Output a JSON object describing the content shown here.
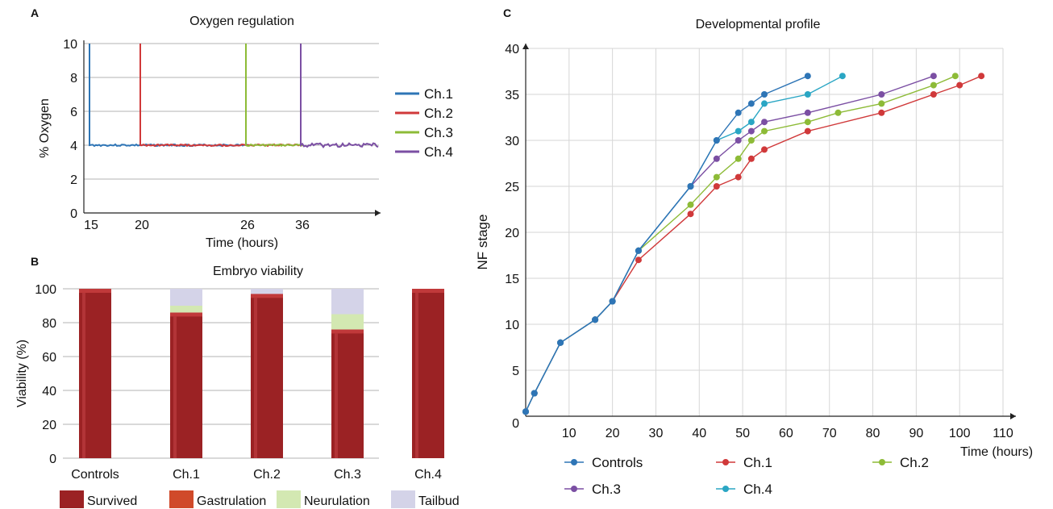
{
  "panels": {
    "a": "A",
    "b": "B",
    "c": "C"
  },
  "colors": {
    "ch1": "#2e75b6",
    "ch2": "#d0393a",
    "ch3": "#8dbb37",
    "ch4": "#7b4fa3",
    "controls": "#2e75b6",
    "dev_ch1": "#d0393a",
    "dev_ch2": "#8dbb37",
    "dev_ch3": "#7b4fa3",
    "dev_ch4": "#2aa6c4",
    "survived": "#9b2224",
    "gastrulation": "#d04a2a",
    "neurulation": "#d3e8b2",
    "tailbud": "#d4d3e8",
    "grid": "#b3b3b3"
  },
  "chart_data": [
    {
      "id": "oxygen",
      "type": "line",
      "title": "Oxygen regulation",
      "xlabel": "Time (hours)",
      "ylabel": "% Oxygen",
      "ylim": [
        0,
        10
      ],
      "yticks": [
        "0",
        "2",
        "4",
        "6",
        "8",
        "10"
      ],
      "xticks": [
        "15",
        "20",
        "26",
        "36"
      ],
      "grid": true,
      "legend_position": "right",
      "series": [
        {
          "name": "Ch.1",
          "spike_at": "15",
          "end_at": "26",
          "level": 4.0
        },
        {
          "name": "Ch.2",
          "spike_at": "20",
          "end_at": "36",
          "level": 4.0
        },
        {
          "name": "Ch.3",
          "spike_at": "26",
          "end_at": "36",
          "level": 4.0
        },
        {
          "name": "Ch.4",
          "spike_at": "36",
          "end_at": "end",
          "level": 4.0
        }
      ]
    },
    {
      "id": "viability",
      "type": "bar",
      "stacked": true,
      "title": "Embryo viability",
      "ylabel": "Viability (%)",
      "ylim": [
        0,
        100
      ],
      "yticks": [
        "0",
        "20",
        "40",
        "60",
        "80",
        "100"
      ],
      "grid": true,
      "categories": [
        "Controls",
        "Ch.1",
        "Ch.2",
        "Ch.3",
        "Ch.4"
      ],
      "series": [
        {
          "name": "Survived",
          "values": [
            100,
            86,
            97,
            76,
            100
          ]
        },
        {
          "name": "Gastrulation",
          "values": [
            0,
            0,
            0,
            0,
            0
          ]
        },
        {
          "name": "Neurulation",
          "values": [
            0,
            4,
            0,
            9,
            0
          ]
        },
        {
          "name": "Tailbud",
          "values": [
            0,
            10,
            3,
            15,
            0
          ]
        }
      ],
      "legend_position": "bottom"
    },
    {
      "id": "development",
      "type": "line",
      "title": "Developmental profile",
      "xlabel": "Time (hours)",
      "ylabel": "NF stage",
      "xlim": [
        0,
        110
      ],
      "ylim": [
        0,
        40
      ],
      "xticks": [
        "10",
        "20",
        "30",
        "40",
        "50",
        "60",
        "70",
        "80",
        "90",
        "100",
        "110"
      ],
      "yticks": [
        "5",
        "10",
        "15",
        "20",
        "25",
        "30",
        "35",
        "40"
      ],
      "origin_label": "0",
      "grid": true,
      "legend_position": "bottom",
      "series": [
        {
          "name": "Controls",
          "x": [
            0,
            2,
            8,
            16,
            20,
            26,
            38,
            44,
            49,
            52,
            55,
            65
          ],
          "y": [
            0.5,
            2.5,
            8,
            10.5,
            12.5,
            18,
            25,
            30,
            33,
            34,
            35,
            37
          ]
        },
        {
          "name": "Ch.1",
          "x": [
            0,
            2,
            8,
            16,
            20,
            26,
            38,
            44,
            49,
            52,
            55,
            65,
            82,
            94,
            100,
            105
          ],
          "y": [
            0.5,
            2.5,
            8,
            10.5,
            12.5,
            17,
            22,
            25,
            26,
            28,
            29,
            31,
            33,
            35,
            36,
            37
          ]
        },
        {
          "name": "Ch.2",
          "x": [
            0,
            2,
            8,
            16,
            20,
            26,
            38,
            44,
            49,
            52,
            55,
            65,
            72,
            82,
            94,
            99
          ],
          "y": [
            0.5,
            2.5,
            8,
            10.5,
            12.5,
            18,
            23,
            26,
            28,
            30,
            31,
            32,
            33,
            34,
            36,
            37
          ]
        },
        {
          "name": "Ch.3",
          "x": [
            0,
            2,
            8,
            16,
            20,
            26,
            38,
            44,
            49,
            52,
            55,
            65,
            82,
            94
          ],
          "y": [
            0.5,
            2.5,
            8,
            10.5,
            12.5,
            18,
            25,
            28,
            30,
            31,
            32,
            33,
            35,
            37
          ]
        },
        {
          "name": "Ch.4",
          "x": [
            0,
            2,
            8,
            16,
            20,
            26,
            38,
            44,
            49,
            52,
            55,
            65,
            73
          ],
          "y": [
            0.5,
            2.5,
            8,
            10.5,
            12.5,
            18,
            25,
            30,
            31,
            32,
            34,
            35,
            37
          ]
        }
      ]
    }
  ]
}
